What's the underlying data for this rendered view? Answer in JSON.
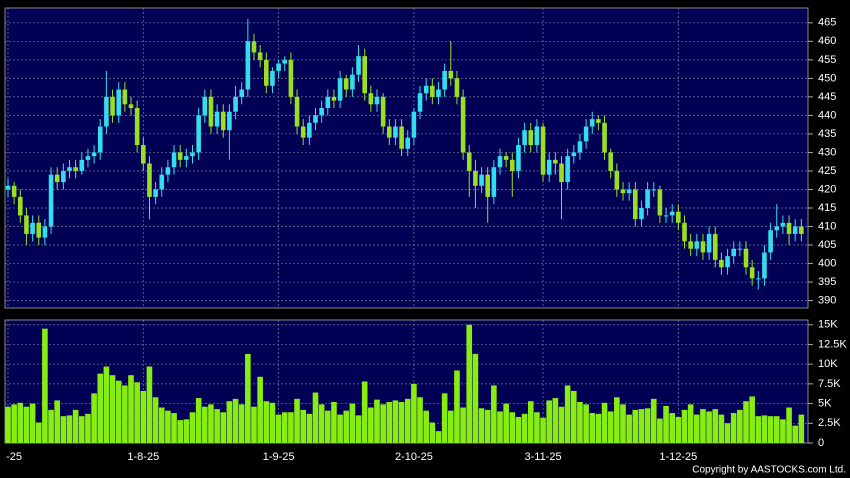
{
  "chart_data": [
    {
      "type": "candlestick",
      "categories": [
        "-25",
        null,
        null,
        null,
        null,
        null,
        null,
        null,
        null,
        null,
        null,
        null,
        null,
        null,
        null,
        null,
        null,
        null,
        null,
        null,
        null,
        null,
        "1-8-25",
        null,
        null,
        null,
        null,
        null,
        null,
        null,
        null,
        null,
        null,
        null,
        null,
        null,
        null,
        null,
        null,
        null,
        null,
        null,
        null,
        null,
        "1-9-25",
        null,
        null,
        null,
        null,
        null,
        null,
        null,
        null,
        null,
        null,
        null,
        null,
        null,
        null,
        null,
        null,
        null,
        null,
        null,
        null,
        null,
        "2-10-25",
        null,
        null,
        null,
        null,
        null,
        null,
        null,
        null,
        null,
        null,
        null,
        null,
        null,
        null,
        null,
        null,
        null,
        null,
        null,
        null,
        "3-11-25",
        null,
        null,
        null,
        null,
        null,
        null,
        null,
        null,
        null,
        null,
        null,
        null,
        null,
        null,
        null,
        null,
        null,
        null,
        null,
        null,
        null,
        "1-12-25",
        null,
        null,
        null,
        null,
        null,
        null,
        null,
        null,
        null,
        null,
        null,
        null,
        null,
        null,
        null,
        null,
        null,
        null,
        null,
        null
      ],
      "open": [
        420,
        421,
        418,
        413,
        408,
        411,
        407,
        410,
        424,
        422,
        425,
        426,
        425,
        428,
        429,
        430,
        437,
        445,
        440,
        447,
        443,
        442,
        432,
        427,
        418,
        420,
        424,
        426,
        430,
        428,
        429,
        430,
        440,
        445,
        437,
        441,
        436,
        441,
        445,
        447,
        460,
        457,
        455,
        448,
        452,
        454,
        455,
        445,
        437,
        434,
        438,
        440,
        442,
        445,
        444,
        450,
        447,
        451,
        456,
        446,
        443,
        445,
        437,
        434,
        437,
        431,
        434,
        441,
        446,
        448,
        445,
        447,
        452,
        450,
        445,
        430,
        425,
        421,
        424,
        418,
        426,
        429,
        428,
        425,
        432,
        436,
        432,
        437,
        424,
        428,
        427,
        422,
        429,
        430,
        433,
        437,
        439,
        438,
        430,
        425,
        420,
        419,
        420,
        412,
        415,
        420,
        420,
        413,
        413,
        414,
        411,
        406,
        404,
        406,
        403,
        408,
        401,
        399,
        402,
        404,
        404,
        399,
        396,
        396,
        403,
        409,
        410,
        411,
        408,
        410
      ],
      "high": [
        423,
        422,
        420,
        415,
        413,
        413,
        412,
        426,
        426,
        427,
        428,
        428,
        430,
        431,
        432,
        439,
        452,
        447,
        449,
        449,
        445,
        444,
        434,
        429,
        422,
        426,
        428,
        432,
        432,
        431,
        432,
        442,
        447,
        447,
        443,
        443,
        443,
        448,
        449,
        466,
        462,
        459,
        457,
        453,
        455,
        456,
        457,
        447,
        439,
        440,
        442,
        444,
        447,
        447,
        452,
        451,
        453,
        459,
        458,
        448,
        447,
        446,
        439,
        439,
        439,
        436,
        442,
        448,
        450,
        450,
        449,
        454,
        460,
        452,
        447,
        432,
        428,
        426,
        426,
        428,
        431,
        430,
        430,
        434,
        438,
        438,
        439,
        438,
        430,
        430,
        429,
        431,
        432,
        435,
        439,
        441,
        440,
        440,
        431,
        427,
        422,
        422,
        422,
        417,
        422,
        422,
        421,
        415,
        416,
        416,
        413,
        408,
        408,
        408,
        410,
        410,
        403,
        404,
        406,
        406,
        406,
        401,
        398,
        405,
        411,
        416,
        413,
        413,
        412,
        412
      ],
      "low": [
        418,
        416,
        411,
        405,
        406,
        405,
        405,
        408,
        420,
        420,
        423,
        423,
        424,
        426,
        427,
        428,
        435,
        438,
        438,
        441,
        440,
        430,
        425,
        412,
        416,
        418,
        422,
        424,
        426,
        426,
        427,
        428,
        438,
        435,
        435,
        434,
        428,
        439,
        443,
        445,
        455,
        453,
        446,
        446,
        450,
        452,
        443,
        435,
        432,
        432,
        436,
        438,
        440,
        442,
        442,
        445,
        445,
        449,
        444,
        441,
        441,
        435,
        432,
        432,
        429,
        429,
        432,
        439,
        444,
        443,
        443,
        445,
        448,
        443,
        428,
        418,
        415,
        419,
        411,
        416,
        424,
        426,
        418,
        423,
        430,
        430,
        430,
        422,
        422,
        424,
        412,
        420,
        427,
        428,
        431,
        435,
        436,
        428,
        423,
        418,
        417,
        417,
        410,
        410,
        413,
        418,
        411,
        411,
        411,
        409,
        404,
        402,
        402,
        401,
        401,
        399,
        397,
        397,
        400,
        402,
        397,
        394,
        393,
        394,
        401,
        407,
        408,
        405,
        406,
        406
      ],
      "close": [
        421,
        418,
        413,
        408,
        411,
        407,
        410,
        424,
        422,
        425,
        426,
        425,
        428,
        429,
        430,
        437,
        445,
        440,
        447,
        443,
        442,
        432,
        427,
        418,
        420,
        424,
        426,
        430,
        428,
        429,
        430,
        440,
        445,
        437,
        441,
        436,
        441,
        445,
        447,
        460,
        457,
        455,
        448,
        452,
        454,
        455,
        445,
        437,
        434,
        438,
        440,
        442,
        445,
        444,
        450,
        447,
        451,
        456,
        446,
        443,
        445,
        437,
        434,
        437,
        431,
        434,
        441,
        446,
        448,
        445,
        447,
        452,
        450,
        445,
        430,
        425,
        421,
        424,
        418,
        426,
        429,
        428,
        425,
        432,
        436,
        432,
        437,
        424,
        428,
        427,
        422,
        429,
        430,
        433,
        437,
        439,
        438,
        430,
        425,
        420,
        419,
        420,
        412,
        415,
        420,
        420,
        413,
        413,
        414,
        411,
        406,
        404,
        406,
        403,
        408,
        401,
        399,
        402,
        404,
        404,
        399,
        396,
        396,
        403,
        409,
        410,
        411,
        408,
        410,
        408
      ],
      "up_color": "#33ddee",
      "down_color": "#99e022",
      "ylim": [
        388,
        469
      ],
      "yticks": [
        390,
        395,
        400,
        405,
        410,
        415,
        420,
        425,
        430,
        435,
        440,
        445,
        450,
        455,
        460,
        465
      ],
      "grid": true
    },
    {
      "type": "bar",
      "values": [
        4600,
        4900,
        5100,
        4600,
        5000,
        2600,
        14500,
        4200,
        5400,
        3400,
        3500,
        4200,
        3400,
        3700,
        6300,
        8800,
        9700,
        8600,
        7900,
        7300,
        8600,
        7700,
        6600,
        9700,
        5800,
        4500,
        4100,
        3800,
        2900,
        3000,
        3900,
        5700,
        4600,
        4900,
        4300,
        3900,
        5300,
        5600,
        4900,
        11300,
        4600,
        8400,
        5300,
        5100,
        3600,
        3900,
        3900,
        5600,
        4200,
        3700,
        6400,
        4900,
        4100,
        5200,
        3600,
        4100,
        5000,
        3500,
        7800,
        4500,
        5500,
        4900,
        5200,
        5400,
        5200,
        5600,
        7500,
        5800,
        4100,
        2600,
        1500,
        6300,
        4100,
        9200,
        4500,
        15000,
        11300,
        4400,
        4200,
        7300,
        4000,
        5000,
        3900,
        3300,
        3700,
        5300,
        3900,
        3200,
        5400,
        5700,
        4600,
        7300,
        6600,
        5200,
        4900,
        3800,
        3700,
        5100,
        4000,
        5800,
        4900,
        3600,
        4200,
        4300,
        4400,
        5600,
        3100,
        4700,
        3800,
        3300,
        4200,
        4900,
        3600,
        4300,
        4000,
        4300,
        3600,
        2500,
        3800,
        4200,
        5300,
        5900,
        3400,
        3500,
        3400,
        3400,
        3000,
        4500,
        2200,
        3600
      ],
      "color": "#88ee11",
      "ylim": [
        0,
        15600
      ],
      "yticks": [
        0,
        {
          "value": 2500,
          "label": "2.5K"
        },
        {
          "value": 5000,
          "label": "5K"
        },
        {
          "value": 7500,
          "label": "7.5K"
        },
        {
          "value": 10000,
          "label": "10K"
        },
        {
          "value": 12500,
          "label": "12.5K"
        },
        {
          "value": 15000,
          "label": "15K"
        }
      ],
      "grid": true,
      "source": "Copyright by AASTOCKS.com Ltd."
    }
  ]
}
